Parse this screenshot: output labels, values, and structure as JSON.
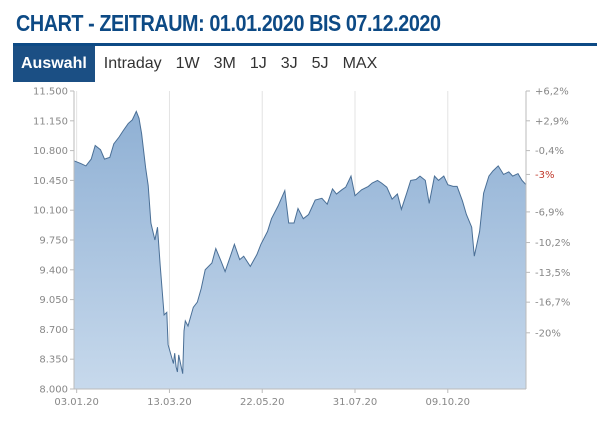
{
  "header": {
    "title": "CHART - ZEITRAUM: 01.01.2020 BIS 07.12.2020"
  },
  "tabs": [
    {
      "label": "Auswahl",
      "active": true
    },
    {
      "label": "Intraday"
    },
    {
      "label": "1W"
    },
    {
      "label": "3M"
    },
    {
      "label": "1J"
    },
    {
      "label": "3J"
    },
    {
      "label": "5J"
    },
    {
      "label": "MAX"
    }
  ],
  "colors": {
    "accent": "#0d4a85",
    "tab_active": "#1b4f84",
    "area_fill": "#a9c4e0",
    "line": "#4a6f96",
    "negative": "#c0392b"
  },
  "chart_data": {
    "type": "area",
    "title": "",
    "xlabel": "",
    "ylabel": "",
    "ylim": [
      8000,
      11500
    ],
    "y_ticks": [
      "11.500",
      "11.150",
      "10.800",
      "10.450",
      "10.100",
      "9.750",
      "9.400",
      "9.050",
      "8.700",
      "8.350",
      "8.000"
    ],
    "x_ticks": [
      "03.01.20",
      "13.03.20",
      "22.05.20",
      "31.07.20",
      "09.10.20"
    ],
    "right_ticks": [
      {
        "label": "+6,2%",
        "value": 11500
      },
      {
        "label": "+2,9%",
        "value": 11150
      },
      {
        "label": "-0,4%",
        "value": 10800
      },
      {
        "label": "-3%",
        "value": 10520,
        "highlight": true
      },
      {
        "label": "-6,9%",
        "value": 10080
      },
      {
        "label": "-10,2%",
        "value": 9720
      },
      {
        "label": "-13,5%",
        "value": 9370
      },
      {
        "label": "-16,7%",
        "value": 9020
      },
      {
        "label": "-20%",
        "value": 8660
      }
    ],
    "grid": true,
    "legend": "none",
    "series": [
      {
        "points": [
          [
            "2020-01-01",
            10680
          ],
          [
            "2020-01-06",
            10650
          ],
          [
            "2020-01-10",
            10620
          ],
          [
            "2020-01-14",
            10700
          ],
          [
            "2020-01-17",
            10860
          ],
          [
            "2020-01-21",
            10810
          ],
          [
            "2020-01-24",
            10700
          ],
          [
            "2020-01-28",
            10720
          ],
          [
            "2020-01-31",
            10880
          ],
          [
            "2020-02-04",
            10960
          ],
          [
            "2020-02-07",
            11030
          ],
          [
            "2020-02-11",
            11120
          ],
          [
            "2020-02-14",
            11160
          ],
          [
            "2020-02-17",
            11260
          ],
          [
            "2020-02-19",
            11180
          ],
          [
            "2020-02-21",
            11000
          ],
          [
            "2020-02-24",
            10600
          ],
          [
            "2020-02-26",
            10390
          ],
          [
            "2020-02-28",
            9950
          ],
          [
            "2020-03-02",
            9750
          ],
          [
            "2020-03-04",
            9900
          ],
          [
            "2020-03-06",
            9450
          ],
          [
            "2020-03-09",
            8870
          ],
          [
            "2020-03-11",
            8900
          ],
          [
            "2020-03-12",
            8520
          ],
          [
            "2020-03-16",
            8300
          ],
          [
            "2020-03-17",
            8420
          ],
          [
            "2020-03-18",
            8260
          ],
          [
            "2020-03-19",
            8200
          ],
          [
            "2020-03-20",
            8400
          ],
          [
            "2020-03-23",
            8180
          ],
          [
            "2020-03-24",
            8680
          ],
          [
            "2020-03-25",
            8800
          ],
          [
            "2020-03-27",
            8740
          ],
          [
            "2020-03-31",
            8960
          ],
          [
            "2020-04-03",
            9020
          ],
          [
            "2020-04-06",
            9180
          ],
          [
            "2020-04-09",
            9400
          ],
          [
            "2020-04-14",
            9480
          ],
          [
            "2020-04-17",
            9650
          ],
          [
            "2020-04-21",
            9500
          ],
          [
            "2020-04-24",
            9380
          ],
          [
            "2020-04-28",
            9560
          ],
          [
            "2020-05-01",
            9700
          ],
          [
            "2020-05-05",
            9520
          ],
          [
            "2020-05-08",
            9560
          ],
          [
            "2020-05-13",
            9440
          ],
          [
            "2020-05-18",
            9580
          ],
          [
            "2020-05-21",
            9700
          ],
          [
            "2020-05-26",
            9850
          ],
          [
            "2020-05-29",
            10000
          ],
          [
            "2020-06-03",
            10150
          ],
          [
            "2020-06-08",
            10330
          ],
          [
            "2020-06-11",
            9950
          ],
          [
            "2020-06-15",
            9950
          ],
          [
            "2020-06-18",
            10120
          ],
          [
            "2020-06-22",
            10000
          ],
          [
            "2020-06-26",
            10050
          ],
          [
            "2020-07-01",
            10220
          ],
          [
            "2020-07-06",
            10240
          ],
          [
            "2020-07-10",
            10170
          ],
          [
            "2020-07-14",
            10350
          ],
          [
            "2020-07-17",
            10290
          ],
          [
            "2020-07-21",
            10340
          ],
          [
            "2020-07-24",
            10370
          ],
          [
            "2020-07-28",
            10500
          ],
          [
            "2020-07-31",
            10270
          ],
          [
            "2020-08-05",
            10340
          ],
          [
            "2020-08-10",
            10380
          ],
          [
            "2020-08-13",
            10420
          ],
          [
            "2020-08-17",
            10450
          ],
          [
            "2020-08-20",
            10420
          ],
          [
            "2020-08-24",
            10370
          ],
          [
            "2020-08-28",
            10230
          ],
          [
            "2020-09-01",
            10290
          ],
          [
            "2020-09-04",
            10110
          ],
          [
            "2020-09-08",
            10300
          ],
          [
            "2020-09-11",
            10450
          ],
          [
            "2020-09-15",
            10460
          ],
          [
            "2020-09-18",
            10500
          ],
          [
            "2020-09-22",
            10450
          ],
          [
            "2020-09-25",
            10180
          ],
          [
            "2020-09-29",
            10500
          ],
          [
            "2020-10-02",
            10450
          ],
          [
            "2020-10-06",
            10500
          ],
          [
            "2020-10-09",
            10400
          ],
          [
            "2020-10-13",
            10380
          ],
          [
            "2020-10-16",
            10380
          ],
          [
            "2020-10-20",
            10210
          ],
          [
            "2020-10-23",
            10050
          ],
          [
            "2020-10-27",
            9900
          ],
          [
            "2020-10-29",
            9560
          ],
          [
            "2020-11-02",
            9850
          ],
          [
            "2020-11-05",
            10300
          ],
          [
            "2020-11-09",
            10500
          ],
          [
            "2020-11-12",
            10560
          ],
          [
            "2020-11-16",
            10620
          ],
          [
            "2020-11-20",
            10520
          ],
          [
            "2020-11-24",
            10550
          ],
          [
            "2020-11-27",
            10500
          ],
          [
            "2020-12-01",
            10530
          ],
          [
            "2020-12-04",
            10450
          ],
          [
            "2020-12-07",
            10400
          ]
        ]
      }
    ]
  }
}
